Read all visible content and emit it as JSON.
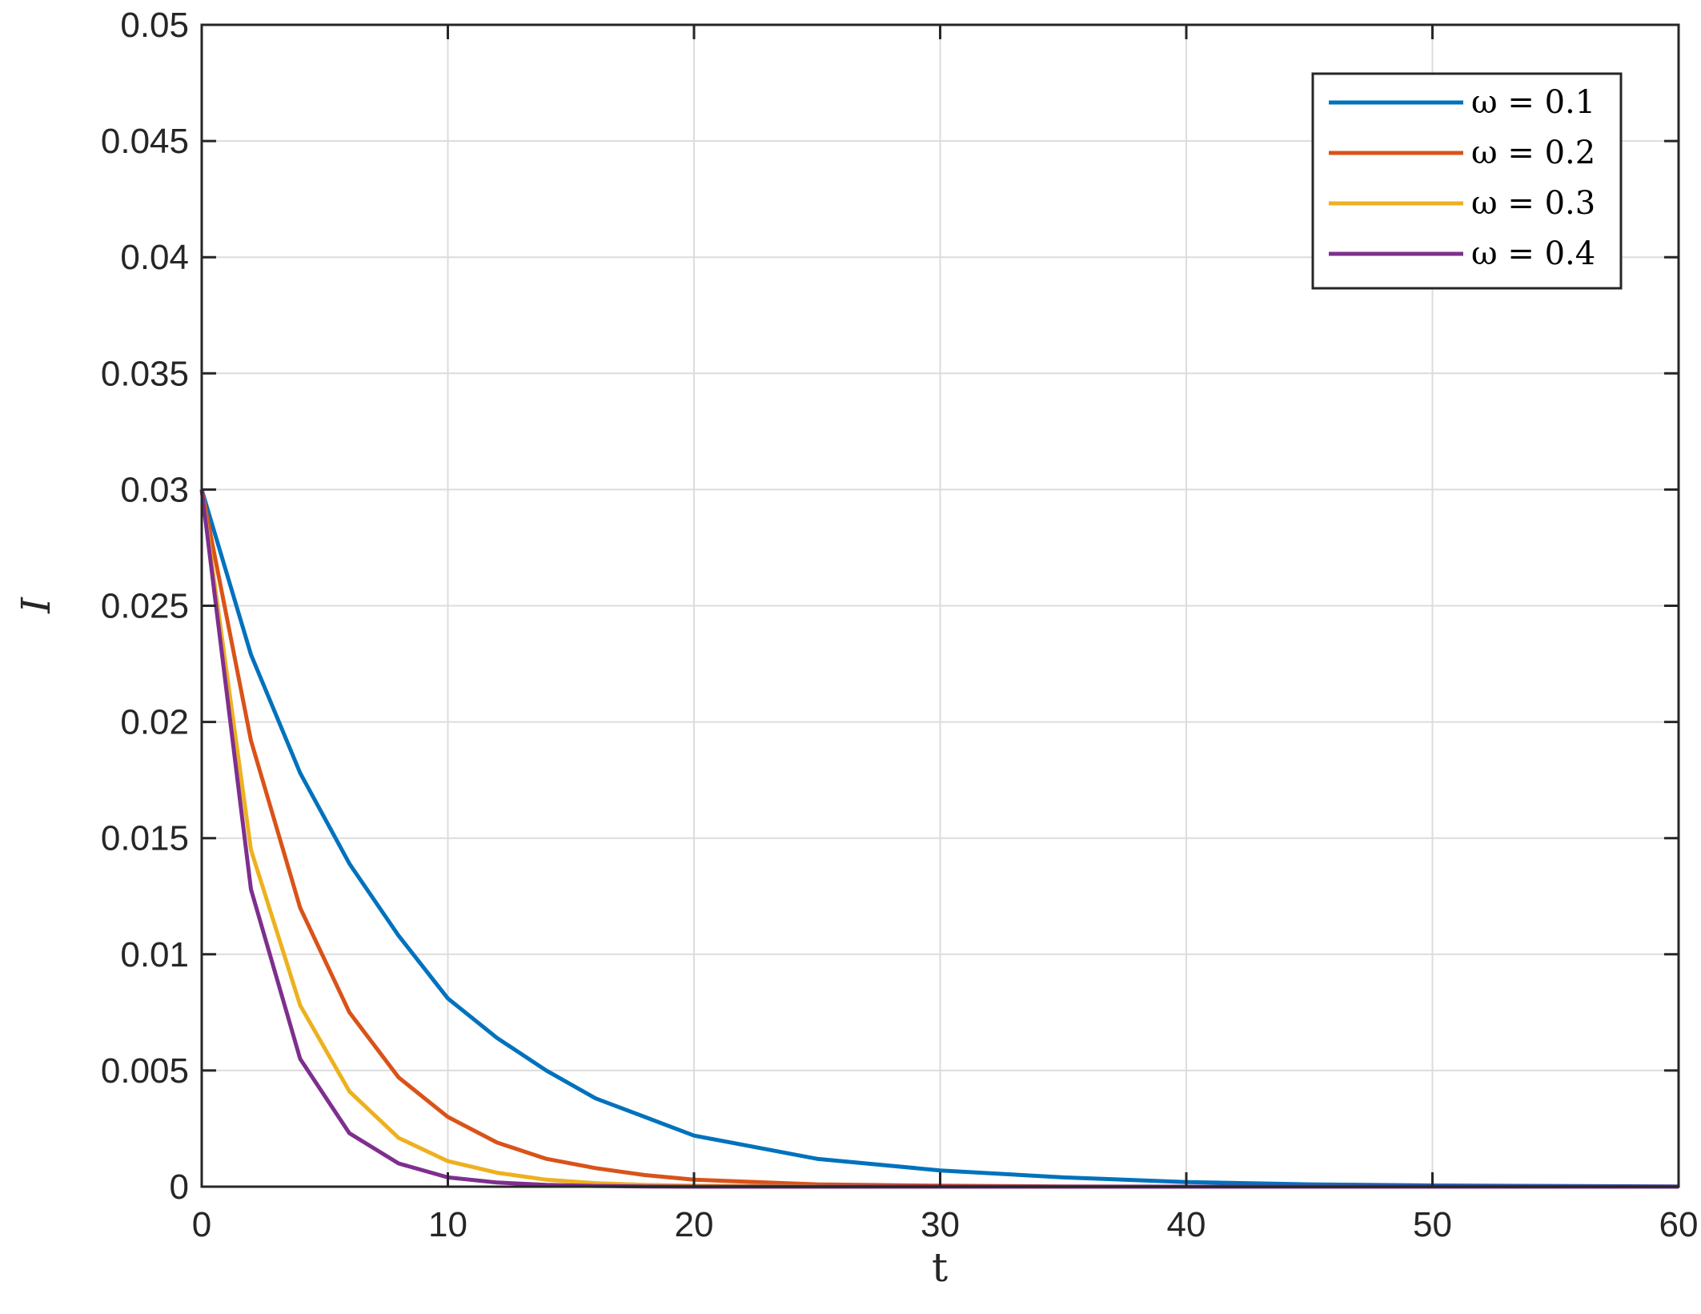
{
  "chart_data": {
    "type": "line",
    "title": "",
    "xlabel": "t",
    "ylabel": "I",
    "xlim": [
      0,
      60
    ],
    "ylim": [
      0,
      0.05
    ],
    "xticks": [
      0,
      10,
      20,
      30,
      40,
      50,
      60
    ],
    "xtick_labels": [
      "0",
      "10",
      "20",
      "30",
      "40",
      "50",
      "60"
    ],
    "yticks": [
      0,
      0.005,
      0.01,
      0.015,
      0.02,
      0.025,
      0.03,
      0.035,
      0.04,
      0.045,
      0.05
    ],
    "ytick_labels": [
      "0",
      "0.005",
      "0.01",
      "0.015",
      "0.02",
      "0.025",
      "0.03",
      "0.035",
      "0.04",
      "0.045",
      "0.05"
    ],
    "grid": true,
    "legend_position": "top-right",
    "x": [
      0,
      2,
      4,
      6,
      8,
      10,
      12,
      14,
      16,
      18,
      20,
      25,
      30,
      35,
      40,
      45,
      50,
      55,
      60
    ],
    "series": [
      {
        "name": "ω = 0.1",
        "color": "#0072BD",
        "values": [
          0.03,
          0.0229,
          0.0178,
          0.0139,
          0.0108,
          0.0081,
          0.0064,
          0.005,
          0.0038,
          0.003,
          0.0022,
          0.0012,
          0.0007,
          0.0004,
          0.0002,
          0.0001,
          5e-05,
          3e-05,
          1e-05
        ]
      },
      {
        "name": "ω = 0.2",
        "color": "#D95319",
        "values": [
          0.03,
          0.0192,
          0.012,
          0.0075,
          0.0047,
          0.003,
          0.0019,
          0.0012,
          0.0008,
          0.0005,
          0.0003,
          0.0001,
          4e-05,
          1e-05,
          0,
          0,
          0,
          0,
          0
        ]
      },
      {
        "name": "ω = 0.3",
        "color": "#EDB120",
        "values": [
          0.03,
          0.0145,
          0.0078,
          0.0041,
          0.0021,
          0.0011,
          0.0006,
          0.0003,
          0.00015,
          8e-05,
          4e-05,
          1e-05,
          0,
          0,
          0,
          0,
          0,
          0,
          0
        ]
      },
      {
        "name": "ω = 0.4",
        "color": "#7E2F8E",
        "values": [
          0.03,
          0.0128,
          0.0055,
          0.0023,
          0.001,
          0.0004,
          0.00018,
          8e-05,
          3e-05,
          1e-05,
          0,
          0,
          0,
          0,
          0,
          0,
          0,
          0,
          0
        ]
      }
    ]
  }
}
